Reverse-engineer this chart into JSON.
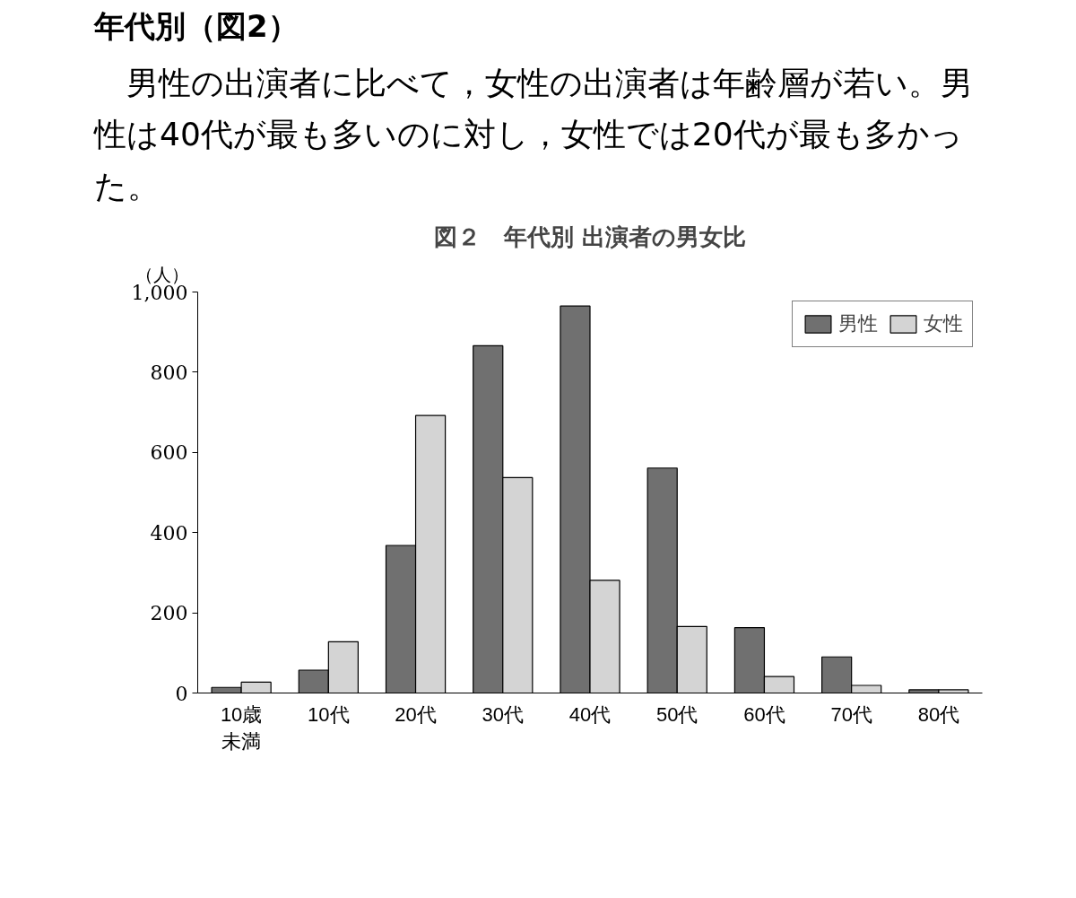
{
  "chart_data": {
    "type": "bar",
    "title": "図２　年代別 出演者の男女比",
    "ylabel": "（人）",
    "annotations": [
      "年代別（図2）",
      "　男性の出演者に比べて，女性の出演者は年齢層が若い。男性は40代が最も多いのに対し，女性では20代が最も多かった。"
    ],
    "categories": [
      "10歳未満",
      "10代",
      "20代",
      "30代",
      "40代",
      "50代",
      "60代",
      "70代",
      "80代"
    ],
    "series": [
      {
        "name": "男性",
        "color": "#707070",
        "values": [
          14,
          57,
          368,
          866,
          965,
          561,
          163,
          90,
          8
        ]
      },
      {
        "name": "女性",
        "color": "#d4d4d4",
        "values": [
          27,
          128,
          692,
          537,
          281,
          166,
          41,
          19,
          8
        ]
      }
    ],
    "ylim": [
      0,
      1000
    ],
    "yticks": [
      0,
      200,
      400,
      600,
      800,
      {
        "value": 1000,
        "label": "1,000"
      }
    ],
    "grid": false,
    "legend": "top right"
  }
}
